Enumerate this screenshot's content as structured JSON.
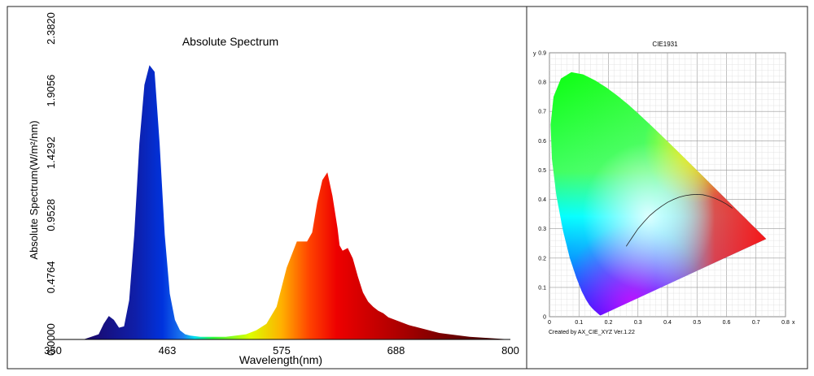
{
  "chart_data": [
    {
      "type": "area",
      "title": "Absolute Spectrum",
      "xlabel": "Wavelength(nm)",
      "ylabel": "Absolute Spectrum(W/m²/nm)",
      "xlim": [
        350,
        800
      ],
      "ylim": [
        0,
        2.382
      ],
      "x_ticks": [
        "350",
        "463",
        "575",
        "688",
        "800"
      ],
      "y_ticks": [
        "0.0000",
        "0.4764",
        "0.9528",
        "1.4292",
        "1.9056",
        "2.3820"
      ],
      "series": [
        {
          "x": [
            350,
            380,
            395,
            400,
            405,
            410,
            415,
            420,
            425,
            430,
            435,
            440,
            445,
            450,
            455,
            460,
            465,
            470,
            475,
            480,
            485,
            490,
            495,
            500,
            510,
            520,
            530,
            540,
            550,
            560,
            570,
            580,
            590,
            600,
            605,
            610,
            615,
            620,
            625,
            630,
            632,
            635,
            640,
            645,
            650,
            655,
            660,
            665,
            670,
            675,
            680,
            690,
            700,
            710,
            720,
            730,
            740,
            760,
            780,
            800
          ],
          "y": [
            0,
            0,
            0.04,
            0.12,
            0.18,
            0.15,
            0.09,
            0.1,
            0.3,
            0.8,
            1.5,
            1.95,
            2.1,
            2.05,
            1.5,
            0.8,
            0.35,
            0.15,
            0.07,
            0.04,
            0.03,
            0.025,
            0.02,
            0.02,
            0.02,
            0.02,
            0.03,
            0.04,
            0.07,
            0.12,
            0.25,
            0.55,
            0.75,
            0.75,
            0.82,
            1.05,
            1.22,
            1.28,
            1.1,
            0.85,
            0.72,
            0.68,
            0.7,
            0.62,
            0.48,
            0.36,
            0.29,
            0.25,
            0.22,
            0.2,
            0.17,
            0.14,
            0.11,
            0.09,
            0.07,
            0.05,
            0.04,
            0.02,
            0.01,
            0
          ]
        }
      ]
    },
    {
      "type": "scatter",
      "title": "CIE1931",
      "xlabel": "x",
      "ylabel": "y",
      "xlim": [
        0,
        0.8
      ],
      "ylim": [
        0,
        0.9
      ],
      "x_ticks": [
        "0",
        "0.1",
        "0.2",
        "0.3",
        "0.4",
        "0.5",
        "0.6",
        "0.7",
        "0.8"
      ],
      "y_ticks": [
        "0",
        "0.1",
        "0.2",
        "0.3",
        "0.4",
        "0.5",
        "0.6",
        "0.7",
        "0.8",
        "0.9"
      ],
      "locus": {
        "x": [
          0.1741,
          0.1738,
          0.1736,
          0.1733,
          0.173,
          0.1726,
          0.1721,
          0.1714,
          0.1703,
          0.1689,
          0.1669,
          0.1644,
          0.1611,
          0.1566,
          0.151,
          0.144,
          0.1355,
          0.1241,
          0.1096,
          0.0913,
          0.0687,
          0.0454,
          0.0235,
          0.0082,
          0.0039,
          0.0139,
          0.0389,
          0.0743,
          0.1142,
          0.1547,
          0.1929,
          0.2296,
          0.2658,
          0.3016,
          0.3373,
          0.3731,
          0.4087,
          0.4441,
          0.4788,
          0.5125,
          0.5448,
          0.5752,
          0.6029,
          0.627,
          0.6482,
          0.6658,
          0.6801,
          0.6915,
          0.7006,
          0.7079,
          0.714,
          0.719,
          0.723,
          0.726,
          0.7347
        ],
        "y": [
          0.005,
          0.0049,
          0.0049,
          0.0048,
          0.0048,
          0.0048,
          0.0048,
          0.0051,
          0.0058,
          0.0069,
          0.0086,
          0.0109,
          0.0138,
          0.0177,
          0.0227,
          0.0297,
          0.0399,
          0.0578,
          0.0868,
          0.1327,
          0.2007,
          0.295,
          0.4127,
          0.5384,
          0.6548,
          0.7502,
          0.812,
          0.8338,
          0.8262,
          0.8059,
          0.7816,
          0.7543,
          0.7243,
          0.6923,
          0.6589,
          0.6245,
          0.5896,
          0.5547,
          0.5202,
          0.4866,
          0.4544,
          0.4242,
          0.3965,
          0.3725,
          0.3514,
          0.334,
          0.3197,
          0.3083,
          0.2993,
          0.292,
          0.2859,
          0.2809,
          0.277,
          0.274,
          0.2653
        ]
      },
      "planckian_locus": {
        "x": [
          0.26,
          0.28,
          0.3,
          0.32,
          0.34,
          0.36,
          0.38,
          0.4,
          0.42,
          0.44,
          0.46,
          0.48,
          0.5,
          0.52,
          0.54,
          0.56,
          0.58,
          0.6,
          0.62
        ],
        "y": [
          0.24,
          0.27,
          0.3,
          0.323,
          0.345,
          0.362,
          0.377,
          0.39,
          0.4,
          0.408,
          0.413,
          0.416,
          0.417,
          0.416,
          0.411,
          0.404,
          0.395,
          0.384,
          0.37
        ]
      },
      "footer": "Created by AX_CIE_XYZ Ver.1.22"
    }
  ]
}
